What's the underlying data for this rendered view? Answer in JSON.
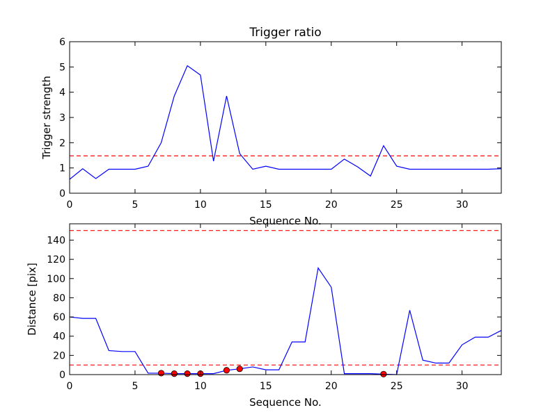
{
  "chart_data": [
    {
      "type": "line",
      "title": "Trigger ratio",
      "xlabel": "Sequence No.",
      "ylabel": "Trigger strength",
      "xlim": [
        0,
        33
      ],
      "ylim": [
        0,
        6
      ],
      "xticks": [
        0,
        5,
        10,
        15,
        20,
        25,
        30
      ],
      "yticks": [
        0,
        1,
        2,
        3,
        4,
        5,
        6
      ],
      "series": [
        {
          "x": [
            0,
            1,
            2,
            3,
            4,
            5,
            6,
            7,
            8,
            9,
            10,
            11,
            12,
            13,
            14,
            15,
            16,
            17,
            18,
            19,
            20,
            21,
            22,
            23,
            24,
            25,
            26,
            27,
            28,
            29,
            30,
            31,
            32,
            33
          ],
          "values": [
            0.55,
            0.97,
            0.58,
            0.95,
            0.95,
            0.95,
            1.07,
            2.0,
            3.85,
            5.05,
            4.68,
            1.27,
            3.85,
            1.57,
            0.95,
            1.07,
            0.95,
            0.95,
            0.95,
            0.95,
            0.95,
            1.35,
            1.05,
            0.68,
            1.88,
            1.07,
            0.95,
            0.95,
            0.95,
            0.95,
            0.95,
            0.95,
            0.95,
            0.97
          ],
          "color": "#0000ff"
        }
      ],
      "reference_lines": [
        {
          "y": 1.48,
          "color": "#ff0000",
          "style": "dashed"
        }
      ],
      "grid": false
    },
    {
      "type": "line",
      "title": "",
      "xlabel": "Sequence No.",
      "ylabel": "Distance [pix]",
      "xlim": [
        0,
        33
      ],
      "ylim": [
        0,
        157
      ],
      "xticks": [
        0,
        5,
        10,
        15,
        20,
        25,
        30
      ],
      "yticks": [
        0,
        20,
        40,
        60,
        80,
        100,
        120,
        140
      ],
      "series": [
        {
          "x": [
            0,
            1,
            2,
            3,
            4,
            5,
            6,
            7,
            8,
            9,
            10,
            11,
            12,
            13,
            14,
            15,
            16,
            17,
            18,
            19,
            20,
            21,
            22,
            23,
            24,
            25,
            26,
            27,
            28,
            29,
            30,
            31,
            32,
            33
          ],
          "values": [
            60,
            58.5,
            58.5,
            25,
            24,
            24,
            1.5,
            1.5,
            1,
            1,
            1,
            1,
            4.5,
            6,
            8,
            5,
            5,
            34,
            34,
            111,
            91,
            1,
            1,
            1,
            0.5,
            0,
            67,
            15,
            12,
            12,
            31,
            39,
            39,
            46
          ],
          "color": "#0000ff"
        }
      ],
      "markers": {
        "x": [
          7,
          8,
          9,
          10,
          12,
          13,
          24
        ],
        "y": [
          1.5,
          1,
          1,
          1,
          4.5,
          6,
          0.5
        ],
        "color": "#ff0000"
      },
      "reference_lines": [
        {
          "y": 150,
          "color": "#ff0000",
          "style": "dashed"
        },
        {
          "y": 10,
          "color": "#ff0000",
          "style": "dashed"
        }
      ],
      "grid": false
    }
  ]
}
